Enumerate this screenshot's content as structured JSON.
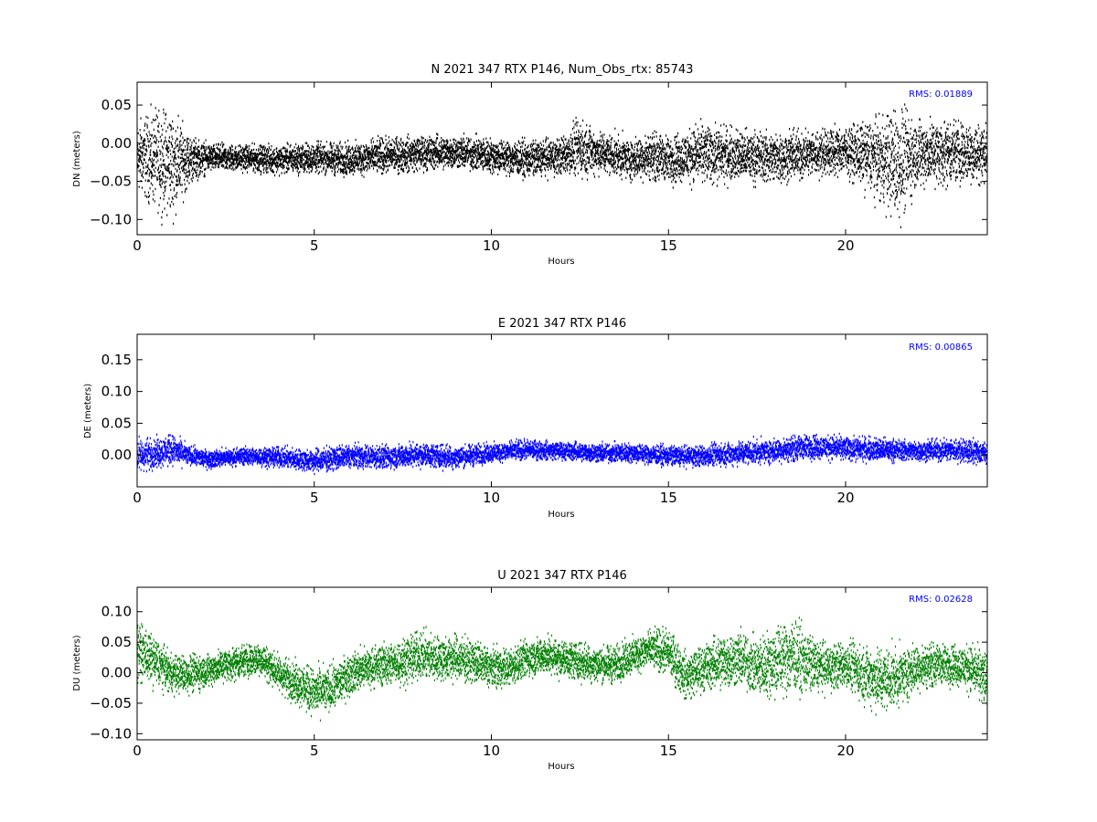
{
  "chart_data": [
    {
      "type": "scatter",
      "title": "N 2021 347 RTX  P146, Num_Obs_rtx: 85743",
      "xlabel": "Hours",
      "ylabel": "DN (meters)",
      "xlim": [
        0,
        24
      ],
      "ylim": [
        -0.12,
        0.08
      ],
      "xticks": [
        0,
        5,
        10,
        15,
        20
      ],
      "yticks": [
        -0.1,
        -0.05,
        0.0,
        0.05
      ],
      "ytick_labels": [
        "−0.10",
        "−0.05",
        "0.00",
        "0.05"
      ],
      "rms_label": "RMS:  0.01889",
      "color": "#000000",
      "series": [
        {
          "x": [
            0,
            0.5,
            1,
            1.5,
            2,
            3,
            4,
            5,
            6,
            7,
            8,
            9,
            10,
            11,
            12,
            12.5,
            13,
            14,
            14.5,
            15,
            16,
            17,
            18,
            19,
            20,
            21,
            21.5,
            22,
            23,
            24
          ],
          "values": [
            -0.015,
            -0.02,
            -0.025,
            -0.02,
            -0.018,
            -0.018,
            -0.02,
            -0.018,
            -0.02,
            -0.015,
            -0.012,
            -0.01,
            -0.015,
            -0.02,
            -0.015,
            -0.005,
            -0.01,
            -0.02,
            -0.015,
            -0.02,
            -0.012,
            -0.015,
            -0.018,
            -0.012,
            -0.008,
            -0.02,
            -0.025,
            -0.012,
            -0.01,
            -0.012
          ],
          "spread": [
            0.03,
            0.04,
            0.045,
            0.02,
            0.012,
            0.011,
            0.012,
            0.013,
            0.014,
            0.015,
            0.015,
            0.014,
            0.015,
            0.015,
            0.016,
            0.025,
            0.018,
            0.017,
            0.02,
            0.02,
            0.025,
            0.022,
            0.022,
            0.02,
            0.02,
            0.035,
            0.05,
            0.03,
            0.028,
            0.025
          ]
        }
      ]
    },
    {
      "type": "scatter",
      "title": "E 2021 347 RTX  P146",
      "xlabel": "Hours",
      "ylabel": "DE (meters)",
      "xlim": [
        0,
        24
      ],
      "ylim": [
        -0.05,
        0.19
      ],
      "xticks": [
        0,
        5,
        10,
        15,
        20
      ],
      "yticks": [
        0.0,
        0.05,
        0.1,
        0.15
      ],
      "ytick_labels": [
        "0.00",
        "0.05",
        "0.10",
        "0.15"
      ],
      "rms_label": "RMS:  0.00865",
      "color": "#0000ff",
      "series": [
        {
          "x": [
            0,
            0.5,
            1,
            1.5,
            2,
            3,
            4,
            5,
            6,
            7,
            8,
            9,
            10,
            11,
            12,
            13,
            14,
            15,
            16,
            17,
            18,
            19,
            20,
            21,
            22,
            23,
            24
          ],
          "values": [
            0.0,
            0.005,
            0.01,
            0.0,
            -0.005,
            0.0,
            -0.002,
            -0.008,
            0.0,
            -0.002,
            0.002,
            -0.002,
            0.005,
            0.01,
            0.008,
            0.005,
            0.005,
            0.0,
            0.0,
            0.005,
            0.008,
            0.015,
            0.012,
            0.01,
            0.008,
            0.01,
            0.005
          ],
          "spread": [
            0.018,
            0.015,
            0.015,
            0.01,
            0.009,
            0.009,
            0.01,
            0.012,
            0.012,
            0.012,
            0.012,
            0.012,
            0.01,
            0.01,
            0.009,
            0.01,
            0.01,
            0.01,
            0.011,
            0.012,
            0.012,
            0.013,
            0.012,
            0.012,
            0.01,
            0.012,
            0.012
          ]
        }
      ]
    },
    {
      "type": "scatter",
      "title": "U 2021 347 RTX  P146",
      "xlabel": "Hours",
      "ylabel": "DU (meters)",
      "xlim": [
        0,
        24
      ],
      "ylim": [
        -0.11,
        0.14
      ],
      "xticks": [
        0,
        5,
        10,
        15,
        20
      ],
      "yticks": [
        -0.1,
        -0.05,
        0.0,
        0.05,
        0.1
      ],
      "ytick_labels": [
        "−0.10",
        "−0.05",
        "0.00",
        "0.05",
        "0.10"
      ],
      "rms_label": "RMS:  0.02628",
      "color": "#008000",
      "series": [
        {
          "x": [
            0,
            0.5,
            1,
            1.5,
            2,
            2.5,
            3,
            3.5,
            4,
            4.5,
            5,
            5.5,
            6,
            6.5,
            7,
            7.5,
            8,
            8.5,
            9,
            9.5,
            10,
            10.5,
            11,
            11.5,
            12,
            12.5,
            13,
            13.5,
            14,
            14.5,
            15,
            15.5,
            16,
            16.5,
            17,
            17.5,
            18,
            18.5,
            19,
            19.5,
            20,
            20.5,
            21,
            21.5,
            22,
            22.5,
            23,
            23.5,
            24
          ],
          "values": [
            0.04,
            0.02,
            0.0,
            0.0,
            0.005,
            0.015,
            0.02,
            0.025,
            0.0,
            -0.015,
            -0.03,
            -0.025,
            0.0,
            0.01,
            0.015,
            0.02,
            0.03,
            0.025,
            0.025,
            0.02,
            0.01,
            0.01,
            0.025,
            0.03,
            0.025,
            0.02,
            0.015,
            0.015,
            0.03,
            0.04,
            0.035,
            -0.005,
            0.01,
            0.02,
            0.025,
            0.01,
            0.02,
            0.03,
            0.015,
            0.01,
            0.015,
            0.0,
            -0.01,
            -0.005,
            0.01,
            0.015,
            0.015,
            0.01,
            -0.01
          ],
          "spread": [
            0.03,
            0.025,
            0.02,
            0.02,
            0.018,
            0.018,
            0.018,
            0.018,
            0.02,
            0.022,
            0.025,
            0.025,
            0.022,
            0.022,
            0.022,
            0.025,
            0.025,
            0.025,
            0.025,
            0.022,
            0.022,
            0.02,
            0.02,
            0.02,
            0.02,
            0.02,
            0.02,
            0.02,
            0.02,
            0.02,
            0.025,
            0.025,
            0.025,
            0.03,
            0.03,
            0.03,
            0.04,
            0.04,
            0.03,
            0.025,
            0.025,
            0.03,
            0.035,
            0.03,
            0.025,
            0.022,
            0.022,
            0.025,
            0.03
          ]
        }
      ]
    }
  ]
}
